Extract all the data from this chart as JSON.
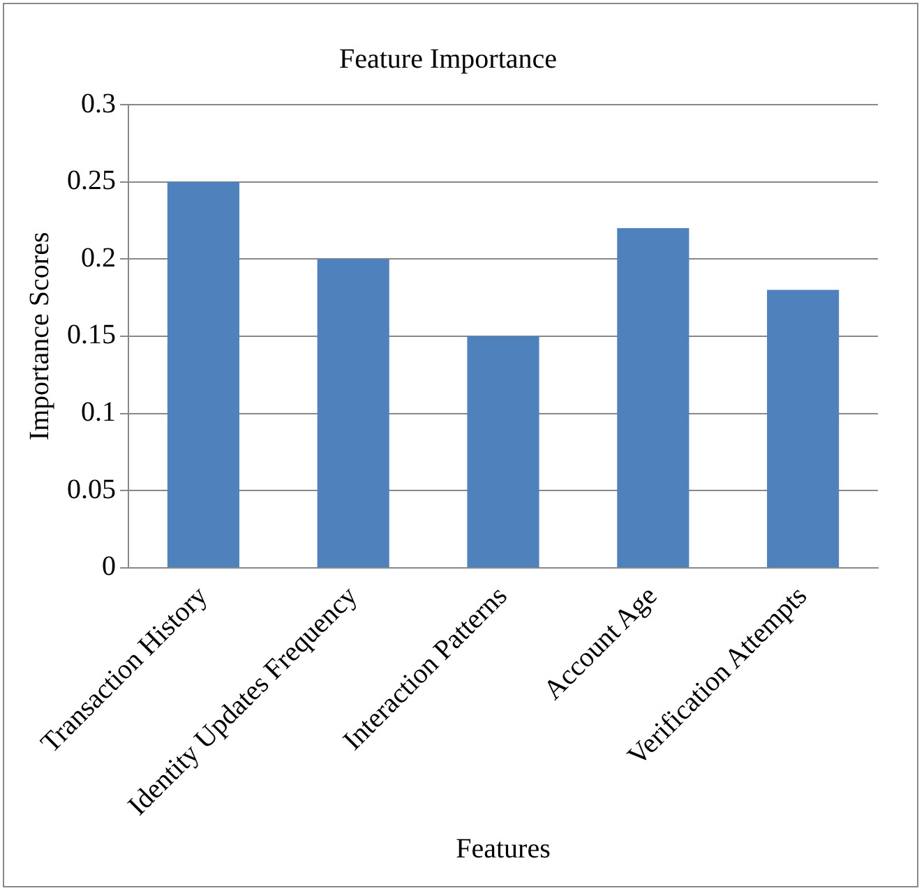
{
  "chart_data": {
    "type": "bar",
    "title": "Feature Importance",
    "xlabel": "Features",
    "ylabel": "Importance Scores",
    "categories": [
      "Transaction History",
      "Identity Updates Frequency",
      "Interaction Patterns",
      "Account Age",
      "Verification Attempts"
    ],
    "values": [
      0.25,
      0.2,
      0.15,
      0.22,
      0.18
    ],
    "color": "#4f81bd",
    "ylim": [
      0,
      0.3
    ],
    "yticks": [
      0,
      0.05,
      0.1,
      0.15,
      0.2,
      0.25,
      0.3
    ],
    "grid": "y",
    "legend": false
  }
}
